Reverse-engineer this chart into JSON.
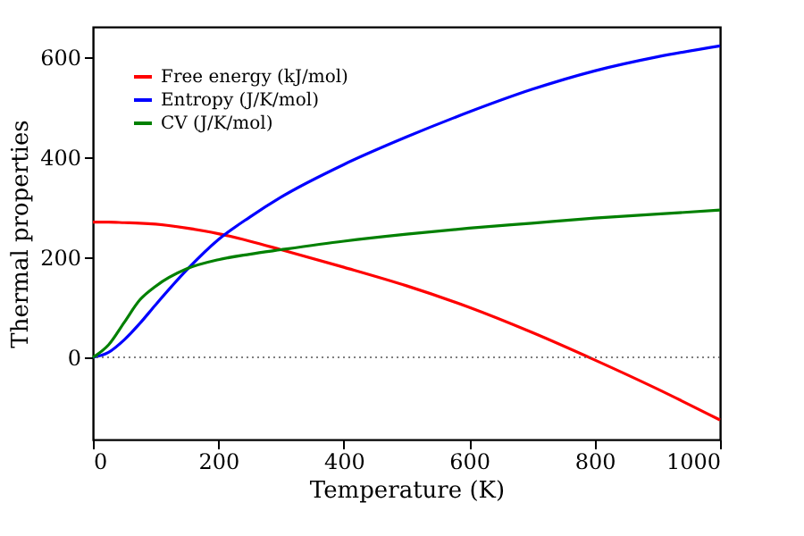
{
  "chart_data": {
    "type": "line",
    "xlabel": "Temperature (K)",
    "ylabel": "Thermal properties",
    "x": [
      0,
      25,
      50,
      75,
      100,
      150,
      200,
      250,
      300,
      400,
      500,
      600,
      700,
      800,
      900,
      1000
    ],
    "series": [
      {
        "name": "Free energy (kJ/mol)",
        "color": "#ff0000",
        "values": [
          270,
          270,
          269,
          268,
          266,
          258,
          247,
          232,
          215,
          180,
          143,
          100,
          50,
          -5,
          -63,
          -125
        ]
      },
      {
        "name": "Entropy (J/K/mol)",
        "color": "#0000ff",
        "values": [
          0,
          10,
          35,
          68,
          105,
          175,
          235,
          280,
          320,
          385,
          440,
          490,
          535,
          572,
          600,
          622
        ]
      },
      {
        "name": "CV (J/K/mol)",
        "color": "#008000",
        "values": [
          0,
          25,
          70,
          115,
          142,
          177,
          195,
          206,
          215,
          232,
          246,
          258,
          268,
          278,
          286,
          294
        ]
      }
    ],
    "xlim": [
      0,
      1000
    ],
    "xticks": [
      0,
      200,
      400,
      600,
      800,
      1000
    ],
    "ylim": [
      -164,
      660
    ],
    "yticks": [
      0,
      200,
      400,
      600
    ],
    "ref_lines": [
      {
        "axis": "y",
        "value": 0,
        "color": "#555555",
        "line_style": "dotted"
      }
    ],
    "legend": "top left",
    "grid": false
  }
}
